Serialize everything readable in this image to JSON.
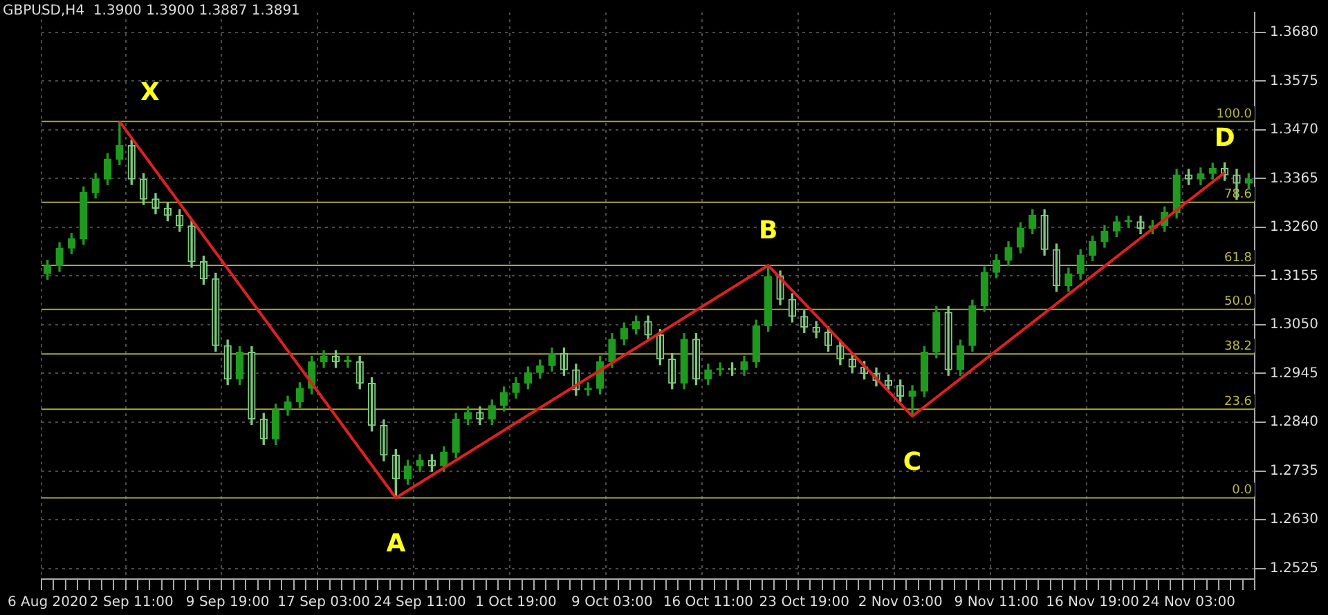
{
  "chart_data": {
    "type": "candlestick",
    "title": "GBPUSD,H4  1.3900 1.3900 1.3887 1.3891",
    "grid": true,
    "colors": [
      "#1f9a1f",
      "#1f9a1f",
      "#1f9a1f",
      "#1f9a1f",
      "#1f9a1f",
      "#1f9a1f",
      "#1f9a1f",
      "#7fc97f",
      "#7fc97f",
      "#7fc97f",
      "#7fc97f",
      "#7fc97f",
      "#7fc97f",
      "#7fc97f",
      "#7fc97f",
      "#7fc97f",
      "#1f9a1f",
      "#7fc97f",
      "#7fc97f",
      "#1f9a1f",
      "#1f9a1f",
      "#1f9a1f",
      "#1f9a1f",
      "#1f9a1f",
      "#7fc97f",
      "#1f9a1f",
      "#7fc97f",
      "#7fc97f",
      "#7fc97f",
      "#7fc97f",
      "#1f9a1f",
      "#1f9a1f",
      "#7fc97f",
      "#1f9a1f",
      "#1f9a1f",
      "#1f9a1f",
      "#7fc97f",
      "#1f9a1f",
      "#1f9a1f",
      "#1f9a1f",
      "#1f9a1f",
      "#1f9a1f",
      "#1f9a1f",
      "#7fc97f",
      "#7fc97f",
      "#1f9a1f",
      "#1f9a1f",
      "#1f9a1f",
      "#1f9a1f",
      "#1f9a1f",
      "#7fc97f",
      "#7fc97f",
      "#7fc97f",
      "#1f9a1f",
      "#7fc97f",
      "#1f9a1f",
      "#1f9a1f",
      "#7fc97f",
      "#1f9a1f",
      "#1f9a1f",
      "#1f9a1f",
      "#7fc97f",
      "#7fc97f",
      "#7fc97f",
      "#7fc97f",
      "#7fc97f",
      "#7fc97f",
      "#7fc97f",
      "#7fc97f",
      "#7fc97f",
      "#7fc97f",
      "#7fc97f",
      "#1f9a1f",
      "#1f9a1f",
      "#1f9a1f",
      "#7fc97f",
      "#1f9a1f",
      "#1f9a1f",
      "#1f9a1f",
      "#1f9a1f",
      "#1f9a1f",
      "#1f9a1f",
      "#1f9a1f",
      "#7fc97f",
      "#7fc97f",
      "#1f9a1f",
      "#1f9a1f",
      "#1f9a1f",
      "#1f9a1f",
      "#1f9a1f",
      "#1f9a1f",
      "#7fc97f",
      "#1f9a1f",
      "#1f9a1f",
      "#1f9a1f",
      "#7fc97f",
      "#1f9a1f",
      "#1f9a1f",
      "#7fc97f",
      "#7fc97f",
      "#1f9a1f"
    ],
    "categories": [
      "6 Aug 2020",
      null,
      null,
      null,
      null,
      null,
      null,
      "2 Sep 11:00",
      null,
      null,
      null,
      null,
      null,
      null,
      null,
      "9 Sep 19:00",
      null,
      null,
      null,
      null,
      null,
      null,
      null,
      "17 Sep 03:00",
      null,
      null,
      null,
      null,
      null,
      null,
      null,
      "24 Sep 11:00",
      null,
      null,
      null,
      null,
      null,
      null,
      null,
      "1 Oct 19:00",
      null,
      null,
      null,
      null,
      null,
      null,
      null,
      "9 Oct 03:00",
      null,
      null,
      null,
      null,
      null,
      null,
      null,
      "16 Oct 11:00",
      null,
      null,
      null,
      null,
      null,
      null,
      null,
      "23 Oct 19:00",
      null,
      null,
      null,
      null,
      null,
      null,
      null,
      "2 Nov 03:00",
      null,
      null,
      null,
      null,
      null,
      null,
      null,
      "9 Nov 11:00",
      null,
      null,
      null,
      null,
      null,
      null,
      null,
      "16 Nov 19:00",
      null,
      null,
      null,
      null,
      null,
      null,
      null,
      "24 Nov 03:00",
      null,
      null,
      null,
      null,
      null
    ],
    "ohlc": [
      [
        1.316,
        1.3189,
        1.3148,
        1.3177
      ],
      [
        1.3177,
        1.3227,
        1.3165,
        1.3215
      ],
      [
        1.3215,
        1.3247,
        1.3203,
        1.3235
      ],
      [
        1.3235,
        1.3347,
        1.3223,
        1.3335
      ],
      [
        1.3335,
        1.3376,
        1.3323,
        1.3364
      ],
      [
        1.3364,
        1.3419,
        1.3352,
        1.3407
      ],
      [
        1.3407,
        1.3488,
        1.3395,
        1.3436
      ],
      [
        1.3436,
        1.3448,
        1.3352,
        1.3364
      ],
      [
        1.3364,
        1.3376,
        1.3309,
        1.3321
      ],
      [
        1.3321,
        1.3333,
        1.3289,
        1.3301
      ],
      [
        1.3301,
        1.3313,
        1.3274,
        1.3286
      ],
      [
        1.3286,
        1.3298,
        1.3251,
        1.3263
      ],
      [
        1.3263,
        1.3275,
        1.3174,
        1.3186
      ],
      [
        1.3186,
        1.3198,
        1.3137,
        1.3149
      ],
      [
        1.3149,
        1.3161,
        1.2993,
        1.3005
      ],
      [
        1.3005,
        1.3017,
        1.2921,
        1.2933
      ],
      [
        1.2933,
        1.3003,
        1.2921,
        1.2991
      ],
      [
        1.2991,
        1.3003,
        1.2835,
        1.2847
      ],
      [
        1.2847,
        1.2859,
        1.2792,
        1.2804
      ],
      [
        1.2804,
        1.2879,
        1.2792,
        1.2867
      ],
      [
        1.2867,
        1.2896,
        1.2855,
        1.2884
      ],
      [
        1.2884,
        1.2925,
        1.2872,
        1.2913
      ],
      [
        1.2913,
        1.2982,
        1.2901,
        1.297
      ],
      [
        1.297,
        1.2994,
        1.2958,
        1.2982
      ],
      [
        1.2982,
        1.2994,
        1.2958,
        1.297
      ],
      [
        1.297,
        1.2982,
        1.2958,
        1.297
      ],
      [
        1.297,
        1.2982,
        1.2912,
        1.2924
      ],
      [
        1.2924,
        1.2936,
        1.2821,
        1.2833
      ],
      [
        1.2833,
        1.2845,
        1.2757,
        1.2769
      ],
      [
        1.2769,
        1.2781,
        1.2677,
        1.2718
      ],
      [
        1.2718,
        1.2758,
        1.2706,
        1.2746
      ],
      [
        1.2746,
        1.277,
        1.2734,
        1.2758
      ],
      [
        1.2758,
        1.277,
        1.2734,
        1.2746
      ],
      [
        1.2746,
        1.2787,
        1.2734,
        1.2775
      ],
      [
        1.2775,
        1.2859,
        1.2763,
        1.2847
      ],
      [
        1.2847,
        1.2873,
        1.2835,
        1.2861
      ],
      [
        1.2861,
        1.2873,
        1.2835,
        1.2847
      ],
      [
        1.2847,
        1.2888,
        1.2835,
        1.2876
      ],
      [
        1.2876,
        1.2916,
        1.2864,
        1.2904
      ],
      [
        1.2904,
        1.2936,
        1.2892,
        1.2924
      ],
      [
        1.2924,
        1.2959,
        1.2912,
        1.2947
      ],
      [
        1.2947,
        1.2974,
        1.2935,
        1.2962
      ],
      [
        1.2962,
        1.3,
        1.295,
        1.2988
      ],
      [
        1.2988,
        1.3,
        1.2941,
        1.2953
      ],
      [
        1.2953,
        1.2965,
        1.2898,
        1.291
      ],
      [
        1.291,
        1.2925,
        1.2898,
        1.2913
      ],
      [
        1.2913,
        1.2982,
        1.2901,
        1.297
      ],
      [
        1.297,
        1.3031,
        1.2958,
        1.3019
      ],
      [
        1.3019,
        1.3054,
        1.3007,
        1.3042
      ],
      [
        1.3042,
        1.3069,
        1.303,
        1.3057
      ],
      [
        1.3057,
        1.3069,
        1.3016,
        1.3028
      ],
      [
        1.3028,
        1.304,
        1.2964,
        1.2976
      ],
      [
        1.2976,
        1.2988,
        1.2912,
        1.2924
      ],
      [
        1.2924,
        1.3031,
        1.2912,
        1.3019
      ],
      [
        1.3019,
        1.3031,
        1.2921,
        1.2933
      ],
      [
        1.2933,
        1.2965,
        1.2921,
        1.2953
      ],
      [
        1.2953,
        1.2968,
        1.2941,
        1.2956
      ],
      [
        1.2956,
        1.2968,
        1.2941,
        1.2953
      ],
      [
        1.2953,
        1.2982,
        1.2941,
        1.297
      ],
      [
        1.297,
        1.306,
        1.2958,
        1.3048
      ],
      [
        1.3048,
        1.3178,
        1.3036,
        1.3154
      ],
      [
        1.3154,
        1.3166,
        1.3093,
        1.3105
      ],
      [
        1.3105,
        1.3117,
        1.3056,
        1.3068
      ],
      [
        1.3068,
        1.308,
        1.3033,
        1.3045
      ],
      [
        1.3045,
        1.3057,
        1.3022,
        1.3034
      ],
      [
        1.3034,
        1.3046,
        1.2993,
        1.3005
      ],
      [
        1.3005,
        1.3017,
        1.2964,
        1.2976
      ],
      [
        1.2976,
        1.2988,
        1.2947,
        1.2959
      ],
      [
        1.2959,
        1.2971,
        1.2933,
        1.2945
      ],
      [
        1.2945,
        1.2957,
        1.2918,
        1.293
      ],
      [
        1.293,
        1.2942,
        1.2907,
        1.2919
      ],
      [
        1.2919,
        1.2931,
        1.2884,
        1.2896
      ],
      [
        1.2896,
        1.2919,
        1.2853,
        1.2907
      ],
      [
        1.2907,
        1.3003,
        1.2895,
        1.2991
      ],
      [
        1.2991,
        1.3089,
        1.2979,
        1.3077
      ],
      [
        1.3077,
        1.3089,
        1.2941,
        1.2953
      ],
      [
        1.2953,
        1.3017,
        1.2941,
        1.3005
      ],
      [
        1.3005,
        1.3103,
        1.2993,
        1.3091
      ],
      [
        1.3091,
        1.3175,
        1.3079,
        1.3163
      ],
      [
        1.3163,
        1.3201,
        1.3151,
        1.3189
      ],
      [
        1.3189,
        1.3229,
        1.3177,
        1.3217
      ],
      [
        1.3217,
        1.327,
        1.3205,
        1.3258
      ],
      [
        1.3258,
        1.3298,
        1.3246,
        1.3286
      ],
      [
        1.3286,
        1.3298,
        1.32,
        1.3212
      ],
      [
        1.3212,
        1.3224,
        1.3122,
        1.3134
      ],
      [
        1.3134,
        1.3172,
        1.3122,
        1.316
      ],
      [
        1.316,
        1.3212,
        1.3148,
        1.32
      ],
      [
        1.32,
        1.3241,
        1.3188,
        1.3229
      ],
      [
        1.3229,
        1.3264,
        1.3217,
        1.3252
      ],
      [
        1.3252,
        1.3284,
        1.324,
        1.3272
      ],
      [
        1.3272,
        1.3284,
        1.326,
        1.3272
      ],
      [
        1.3272,
        1.3284,
        1.3246,
        1.3258
      ],
      [
        1.3258,
        1.3275,
        1.3246,
        1.3263
      ],
      [
        1.3263,
        1.3304,
        1.3251,
        1.3292
      ],
      [
        1.3292,
        1.3385,
        1.328,
        1.3373
      ],
      [
        1.3373,
        1.3385,
        1.3352,
        1.3364
      ],
      [
        1.3364,
        1.3388,
        1.3352,
        1.3376
      ],
      [
        1.3376,
        1.3398,
        1.3364,
        1.3387
      ],
      [
        1.3387,
        1.3399,
        1.3361,
        1.3373
      ],
      [
        1.3373,
        1.3385,
        1.332,
        1.3355
      ],
      [
        1.3355,
        1.3376,
        1.3343,
        1.3364
      ]
    ],
    "series": [
      {
        "type": "line",
        "color": "#e02020",
        "values": [
          null,
          null,
          null,
          null,
          null,
          null,
          1.3488,
          null,
          null,
          null,
          null,
          null,
          null,
          null,
          null,
          null,
          null,
          null,
          null,
          null,
          null,
          null,
          null,
          null,
          null,
          null,
          null,
          null,
          null,
          1.2677,
          null,
          null,
          null,
          null,
          null,
          null,
          null,
          null,
          null,
          null,
          null,
          null,
          null,
          null,
          null,
          null,
          null,
          null,
          null,
          null,
          null,
          null,
          null,
          null,
          null,
          null,
          null,
          null,
          null,
          null,
          1.3178,
          null,
          null,
          null,
          null,
          null,
          null,
          null,
          null,
          null,
          null,
          null,
          1.2853,
          null,
          null,
          null,
          null,
          null,
          null,
          null,
          null,
          null,
          null,
          null,
          null,
          null,
          null,
          null,
          null,
          null,
          null,
          null,
          null,
          null,
          null,
          null,
          null,
          null,
          1.3378,
          null,
          null
        ],
        "value_labels": [
          null,
          null,
          null,
          null,
          null,
          null,
          "X",
          null,
          null,
          null,
          null,
          null,
          null,
          null,
          null,
          null,
          null,
          null,
          null,
          null,
          null,
          null,
          null,
          null,
          null,
          null,
          null,
          null,
          null,
          "A",
          null,
          null,
          null,
          null,
          null,
          null,
          null,
          null,
          null,
          null,
          null,
          null,
          null,
          null,
          null,
          null,
          null,
          null,
          null,
          null,
          null,
          null,
          null,
          null,
          null,
          null,
          null,
          null,
          null,
          null,
          "B",
          null,
          null,
          null,
          null,
          null,
          null,
          null,
          null,
          null,
          null,
          null,
          "C",
          null,
          null,
          null,
          null,
          null,
          null,
          null,
          null,
          null,
          null,
          null,
          null,
          null,
          null,
          null,
          null,
          null,
          null,
          null,
          null,
          null,
          null,
          null,
          null,
          null,
          "D",
          null,
          null
        ]
      }
    ],
    "ylim": [
      1.2502,
      1.3723
    ],
    "yticks": [
      1.2525,
      {
        "value": 1.263,
        "label": "1.2630"
      },
      1.2735,
      {
        "value": 1.284,
        "label": "1.2840"
      },
      1.2945,
      {
        "value": 1.305,
        "label": "1.3050"
      },
      1.3155,
      {
        "value": 1.326,
        "label": "1.3260"
      },
      1.3365,
      {
        "value": 1.347,
        "label": "1.3470"
      },
      1.3575,
      {
        "value": 1.368,
        "label": "1.3680"
      }
    ],
    "ref_lines": [
      {
        "axis": "y",
        "value": 1.3488,
        "color": "#a8a838"
      },
      {
        "axis": "y",
        "value": 1.3314,
        "color": "#a8a838"
      },
      {
        "axis": "y",
        "value": 1.3178,
        "color": "#a8a838"
      },
      {
        "axis": "y",
        "value": 1.3083,
        "color": "#a8a838"
      },
      {
        "axis": "y",
        "value": 1.2987,
        "color": "#a8a838"
      },
      {
        "axis": "y",
        "value": 1.2868,
        "color": "#a8a838"
      },
      {
        "axis": "y",
        "value": 1.2677,
        "color": "#a8a838"
      }
    ],
    "annotations": [
      {
        "text": "100.0",
        "y": 1.3488
      },
      {
        "text": "78.6",
        "y": 1.3314
      },
      {
        "text": "61.8",
        "y": 1.3178
      },
      {
        "text": "50.0",
        "y": 1.3083
      },
      {
        "text": "38.2",
        "y": 1.2987
      },
      {
        "text": "23.6",
        "y": 1.2868
      },
      {
        "text": "0.0",
        "y": 1.2677
      }
    ]
  }
}
